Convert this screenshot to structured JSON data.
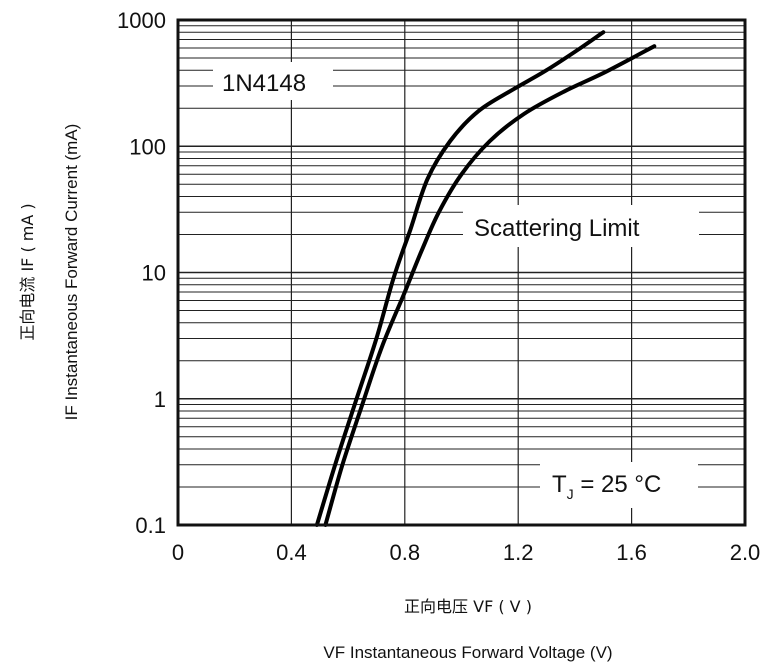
{
  "chart_data": {
    "type": "line",
    "title": "",
    "xlabel": "VF  Instantaneous Forward Voltage (V)",
    "xlabel_cn": "正向电压  VF ( V )",
    "ylabel": "IF Instantaneous Forward Current (mA)",
    "ylabel_cn": "正向电流  IF ( mA )",
    "x_scale": "linear",
    "y_scale": "log",
    "xlim": [
      0,
      2.0
    ],
    "ylim": [
      0.1,
      1000
    ],
    "x_ticks": [
      "0",
      "0.4",
      "0.8",
      "1.2",
      "1.6",
      "2.0"
    ],
    "y_ticks": [
      "0.1",
      "1",
      "10",
      "100",
      "1000"
    ],
    "grid": true,
    "annotations": {
      "device": "1N4148",
      "scatter": "Scattering Limit",
      "temperature_prefix": "T",
      "temperature_sub": "J",
      "temperature_suffix": " = 25 °C"
    },
    "series": [
      {
        "color": "#000000",
        "x": [
          0.49,
          0.56,
          0.63,
          0.7,
          0.76,
          0.82,
          0.88,
          0.96,
          1.06,
          1.18,
          1.3,
          1.42,
          1.5
        ],
        "y": [
          0.1,
          0.33,
          1.0,
          3.0,
          9.0,
          22,
          55,
          110,
          190,
          280,
          400,
          600,
          800
        ]
      },
      {
        "color": "#000000",
        "x": [
          0.52,
          0.58,
          0.65,
          0.72,
          0.8,
          0.86,
          0.92,
          1.0,
          1.1,
          1.22,
          1.36,
          1.5,
          1.68
        ],
        "y": [
          0.1,
          0.3,
          0.9,
          2.6,
          7.0,
          15,
          30,
          60,
          110,
          180,
          270,
          380,
          620
        ]
      }
    ]
  }
}
